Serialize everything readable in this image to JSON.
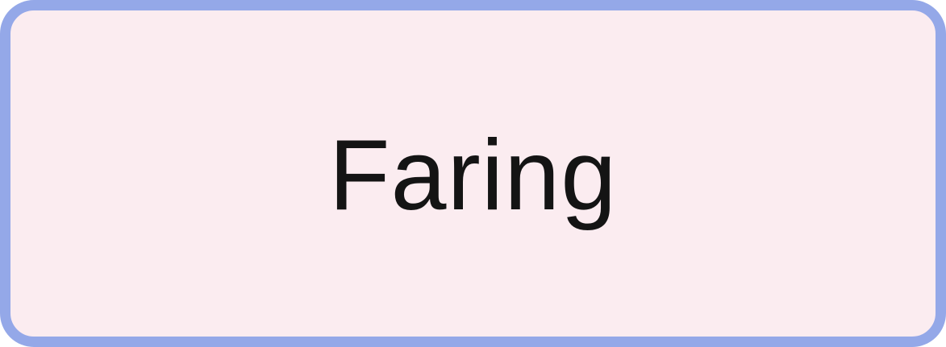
{
  "card": {
    "label": "Faring",
    "colors": {
      "border": "#94a8e8",
      "background": "#fbecf0",
      "text": "#141414"
    }
  }
}
